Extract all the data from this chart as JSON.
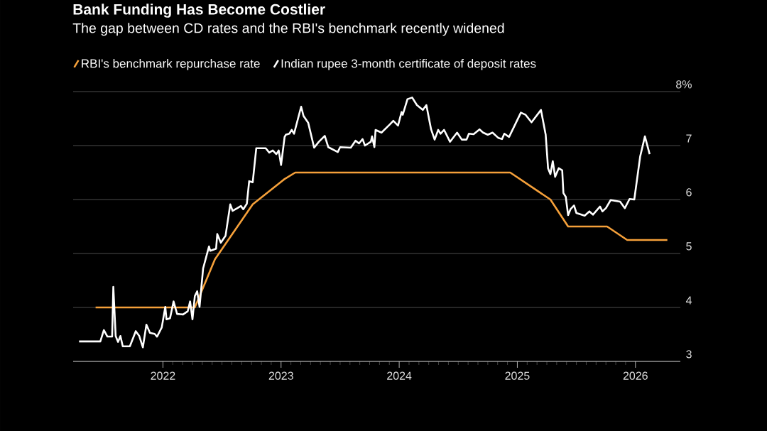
{
  "chart_data": {
    "type": "line",
    "title": "Bank Funding Has Become Costlier",
    "subtitle": "The gap between CD rates and the RBI's benchmark recently widened",
    "xlim": [
      2021.24,
      2026.38
    ],
    "xticks": [
      2022,
      2023,
      2024,
      2025,
      2026
    ],
    "ylim": [
      3,
      8
    ],
    "yticks": [
      3,
      4,
      5,
      6,
      7,
      {
        "value": 8,
        "label": "8%"
      }
    ],
    "grid": "y",
    "legend": "top left",
    "series": [
      {
        "name": "RBI's benchmark repurchase rate",
        "color": "#f5a03a",
        "x": [
          2021.43,
          2022.27,
          2022.44,
          2022.76,
          2023.03,
          2023.12,
          2024.94,
          2025.28,
          2025.43,
          2025.76,
          2025.93,
          2026.27
        ],
        "values": [
          4.0,
          4.0,
          4.89,
          5.91,
          6.38,
          6.5,
          6.5,
          6.0,
          5.5,
          5.5,
          5.25,
          5.25
        ]
      },
      {
        "name": "Indian rupee 3-month certificate of deposit rates",
        "color": "#ffffff",
        "x": [
          2021.29,
          2021.47,
          2021.5,
          2021.53,
          2021.57,
          2021.58,
          2021.6,
          2021.62,
          2021.64,
          2021.66,
          2021.72,
          2021.77,
          2021.8,
          2021.83,
          2021.86,
          2021.89,
          2021.93,
          2021.95,
          2021.99,
          2022.02,
          2022.03,
          2022.06,
          2022.09,
          2022.12,
          2022.17,
          2022.21,
          2022.23,
          2022.25,
          2022.27,
          2022.29,
          2022.31,
          2022.34,
          2022.39,
          2022.4,
          2022.45,
          2022.46,
          2022.49,
          2022.53,
          2022.57,
          2022.59,
          2022.63,
          2022.66,
          2022.68,
          2022.71,
          2022.73,
          2022.76,
          2022.79,
          2022.87,
          2022.9,
          2022.93,
          2022.96,
          2022.98,
          2023.0,
          2023.03,
          2023.04,
          2023.07,
          2023.09,
          2023.11,
          2023.17,
          2023.19,
          2023.23,
          2023.28,
          2023.32,
          2023.37,
          2023.4,
          2023.48,
          2023.5,
          2023.59,
          2023.63,
          2023.66,
          2023.69,
          2023.71,
          2023.76,
          2023.77,
          2023.79,
          2023.8,
          2023.85,
          2023.92,
          2023.95,
          2023.99,
          2024.02,
          2024.03,
          2024.07,
          2024.11,
          2024.15,
          2024.2,
          2024.23,
          2024.27,
          2024.3,
          2024.33,
          2024.35,
          2024.38,
          2024.43,
          2024.49,
          2024.53,
          2024.57,
          2024.59,
          2024.63,
          2024.68,
          2024.71,
          2024.75,
          2024.79,
          2024.84,
          2024.87,
          2024.89,
          2024.93,
          2024.99,
          2025.03,
          2025.07,
          2025.12,
          2025.2,
          2025.24,
          2025.26,
          2025.28,
          2025.3,
          2025.32,
          2025.35,
          2025.38,
          2025.39,
          2025.41,
          2025.43,
          2025.45,
          2025.48,
          2025.5,
          2025.57,
          2025.61,
          2025.64,
          2025.7,
          2025.72,
          2025.75,
          2025.79,
          2025.87,
          2025.91,
          2025.95,
          2025.99,
          2026.04,
          2026.08,
          2026.12
        ],
        "values": [
          3.37,
          3.37,
          3.58,
          3.46,
          3.46,
          4.38,
          3.47,
          3.36,
          3.47,
          3.28,
          3.28,
          3.56,
          3.47,
          3.26,
          3.68,
          3.53,
          3.51,
          3.46,
          3.63,
          4.01,
          3.78,
          3.8,
          4.11,
          3.88,
          3.87,
          3.93,
          4.11,
          3.78,
          4.21,
          4.3,
          4.01,
          4.72,
          5.13,
          5.05,
          5.09,
          5.36,
          5.2,
          5.33,
          5.91,
          5.79,
          5.84,
          5.88,
          5.82,
          5.92,
          6.34,
          6.32,
          6.95,
          6.95,
          6.87,
          6.91,
          6.84,
          6.91,
          6.64,
          7.16,
          7.2,
          7.22,
          7.29,
          7.22,
          7.72,
          7.55,
          7.42,
          6.96,
          7.07,
          7.18,
          6.97,
          6.88,
          6.97,
          6.96,
          7.09,
          7.04,
          7.12,
          7.0,
          7.07,
          7.17,
          6.97,
          7.29,
          7.24,
          7.39,
          7.46,
          7.37,
          7.62,
          7.57,
          7.86,
          7.89,
          7.75,
          7.66,
          7.75,
          7.3,
          7.11,
          7.29,
          7.22,
          7.29,
          7.07,
          7.24,
          7.11,
          7.11,
          7.22,
          7.21,
          7.3,
          7.24,
          7.2,
          7.24,
          7.14,
          7.12,
          7.22,
          7.16,
          7.43,
          7.61,
          7.57,
          7.43,
          7.66,
          7.2,
          6.58,
          6.47,
          6.71,
          6.42,
          6.58,
          6.54,
          6.12,
          6.05,
          5.71,
          5.82,
          5.89,
          5.75,
          5.7,
          5.78,
          5.72,
          5.87,
          5.78,
          5.84,
          5.99,
          5.96,
          5.84,
          6.01,
          6.0,
          6.8,
          7.17,
          6.84
        ]
      }
    ]
  }
}
